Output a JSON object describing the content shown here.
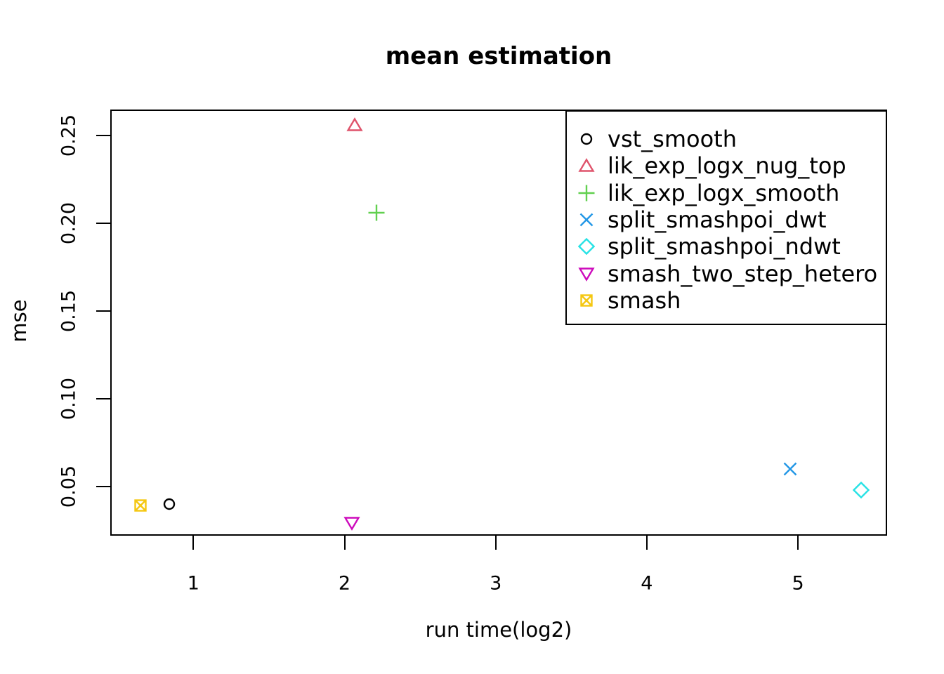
{
  "chart_data": {
    "type": "scatter",
    "title": "mean estimation",
    "xlabel": "run time(log2)",
    "ylabel": "mse",
    "xlim": [
      0.45,
      5.59
    ],
    "ylim": [
      0.022,
      0.265
    ],
    "x_ticks": [
      1,
      2,
      3,
      4,
      5
    ],
    "x_tick_labels": [
      "1",
      "2",
      "3",
      "4",
      "5"
    ],
    "y_ticks": [
      0.05,
      0.1,
      0.15,
      0.2,
      0.25
    ],
    "y_tick_labels": [
      "0.05",
      "0.10",
      "0.15",
      "0.20",
      "0.25"
    ],
    "grid": false,
    "legend_position": "top-right",
    "series": [
      {
        "name": "vst_smooth",
        "marker": "circle",
        "color": "#000000",
        "points": [
          [
            0.83,
            0.041
          ]
        ]
      },
      {
        "name": "lik_exp_logx_nug_top",
        "marker": "triangle-up",
        "color": "#DF536B",
        "points": [
          [
            2.06,
            0.257
          ]
        ]
      },
      {
        "name": "lik_exp_logx_smooth",
        "marker": "plus",
        "color": "#61D04F",
        "points": [
          [
            2.2,
            0.207
          ]
        ]
      },
      {
        "name": "split_smashpoi_dwt",
        "marker": "x",
        "color": "#2297E6",
        "points": [
          [
            4.94,
            0.061
          ]
        ]
      },
      {
        "name": "split_smashpoi_ndwt",
        "marker": "diamond",
        "color": "#28E2E5",
        "points": [
          [
            5.41,
            0.049
          ]
        ]
      },
      {
        "name": "smash_two_step_hetero",
        "marker": "triangle-down",
        "color": "#CD0BBC",
        "points": [
          [
            2.04,
            0.03
          ]
        ]
      },
      {
        "name": "smash",
        "marker": "square-x",
        "color": "#F5C710",
        "points": [
          [
            0.64,
            0.04
          ]
        ]
      }
    ]
  }
}
